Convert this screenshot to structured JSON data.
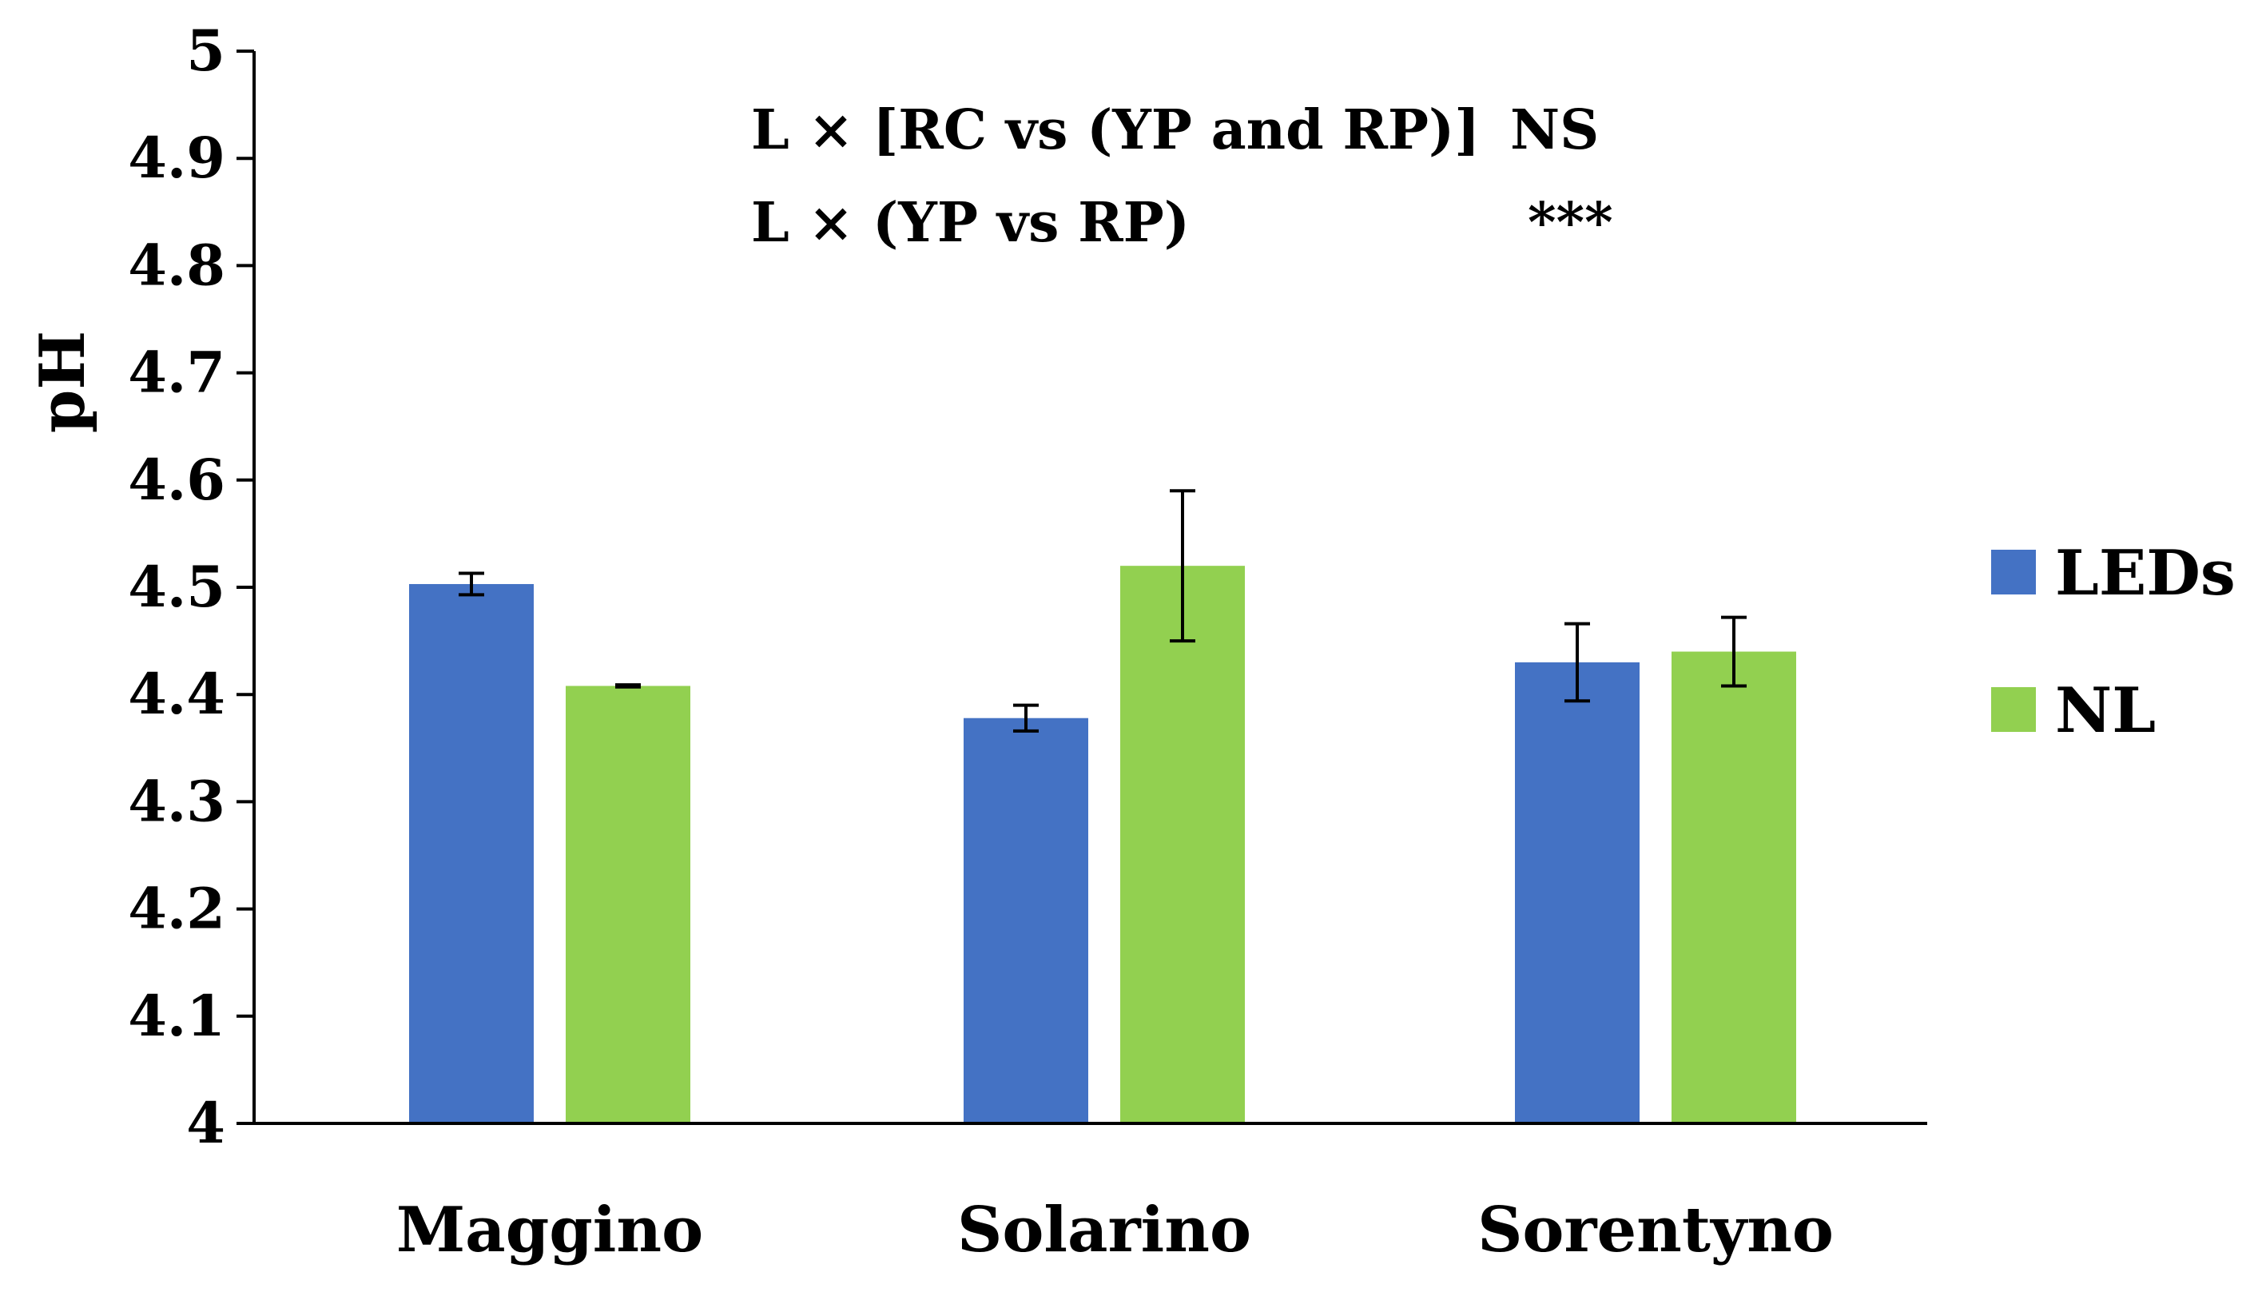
{
  "chart_data": {
    "type": "bar",
    "title": "",
    "xlabel": "",
    "ylabel": "pH",
    "ylim": [
      4,
      5
    ],
    "yticks": [
      "4",
      "4.1",
      "4.2",
      "4.3",
      "4.4",
      "4.5",
      "4.6",
      "4.7",
      "4.8",
      "4.9",
      "5"
    ],
    "grid": false,
    "legend_position": "right",
    "categories": [
      "Maggino",
      "Solarino",
      "Sorentyno"
    ],
    "series": [
      {
        "name": "LEDs",
        "color": "#4472C4",
        "values": [
          4.503,
          4.378,
          4.43
        ],
        "errors": [
          0.01,
          0.012,
          0.036
        ]
      },
      {
        "name": "NL",
        "color": "#92D050",
        "values": [
          4.408,
          4.52,
          4.44
        ],
        "errors": [
          0.001,
          0.07,
          0.032
        ]
      }
    ],
    "annotations": [
      {
        "label": "L × [RC vs (YP and RP)]",
        "significance": "NS"
      },
      {
        "label": "L × (YP vs RP)",
        "significance": "***"
      }
    ]
  }
}
